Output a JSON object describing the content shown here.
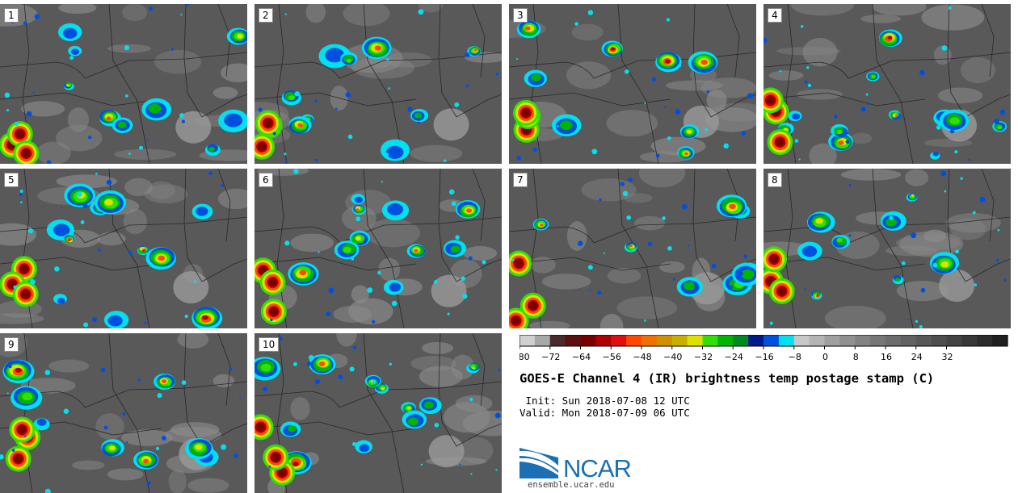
{
  "panels": [
    {
      "label": "1"
    },
    {
      "label": "2"
    },
    {
      "label": "3"
    },
    {
      "label": "4"
    },
    {
      "label": "5"
    },
    {
      "label": "6"
    },
    {
      "label": "7"
    },
    {
      "label": "8"
    },
    {
      "label": "9"
    },
    {
      "label": "10"
    }
  ],
  "colorbar": {
    "tick_labels": [
      "−80",
      "−72",
      "−64",
      "−56",
      "−48",
      "−40",
      "−32",
      "−24",
      "−16",
      "−8",
      "0",
      "8",
      "16",
      "24",
      "32"
    ],
    "colors": [
      "#d0d0d0",
      "#a8a8a8",
      "#4a2a2a",
      "#5c1010",
      "#7a0000",
      "#b00000",
      "#e01010",
      "#ff4800",
      "#f07000",
      "#d09000",
      "#c8b000",
      "#e0e000",
      "#30e000",
      "#00b400",
      "#008a20",
      "#001a8c",
      "#0050e0",
      "#00e0f0",
      "#c8c8c8",
      "#b4b4b4",
      "#a0a0a0",
      "#909090",
      "#828282",
      "#767676",
      "#6c6c6c",
      "#626262",
      "#585858",
      "#4e4e4e",
      "#444444",
      "#383838",
      "#2c2c2c",
      "#202020"
    ]
  },
  "title": "GOES-E Channel 4 (IR) brightness temp postage stamp (C)",
  "init_line": " Init: Sun 2018-07-08 12 UTC",
  "valid_line": "Valid: Mon 2018-07-09 06 UTC",
  "logo": {
    "text": "NCAR",
    "url": "ensemble.ucar.edu"
  },
  "accent_colors": {
    "storm_core": "#7a0000",
    "cold_top": "#ff4800",
    "warm_cloud": "#e0e000",
    "edge": "#00e0f0",
    "logo_blue": "#1a6fb5"
  }
}
